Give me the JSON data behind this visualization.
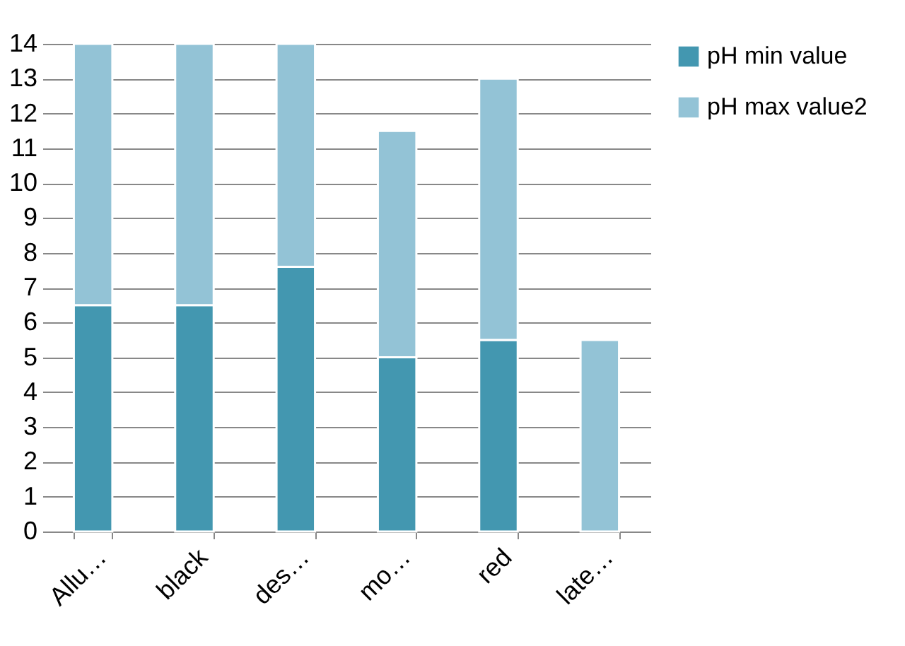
{
  "chart_data": {
    "type": "bar",
    "stacked": true,
    "categories": [
      "Allu…",
      "black",
      "des…",
      "mo…",
      "red",
      "late…"
    ],
    "series": [
      {
        "name": "pH min value",
        "color": "#4397b0",
        "values": [
          6.5,
          6.5,
          7.6,
          5,
          5.5,
          null
        ]
      },
      {
        "name": "pH max value2",
        "color": "#93c3d6",
        "values": [
          7.5,
          7.5,
          6.4,
          6.5,
          7.5,
          5.5
        ]
      }
    ],
    "ylim": [
      0,
      14
    ],
    "yticks": [
      0,
      1,
      2,
      3,
      4,
      5,
      6,
      7,
      8,
      9,
      10,
      11,
      12,
      13,
      14
    ],
    "grid": "y",
    "legend": "right"
  }
}
